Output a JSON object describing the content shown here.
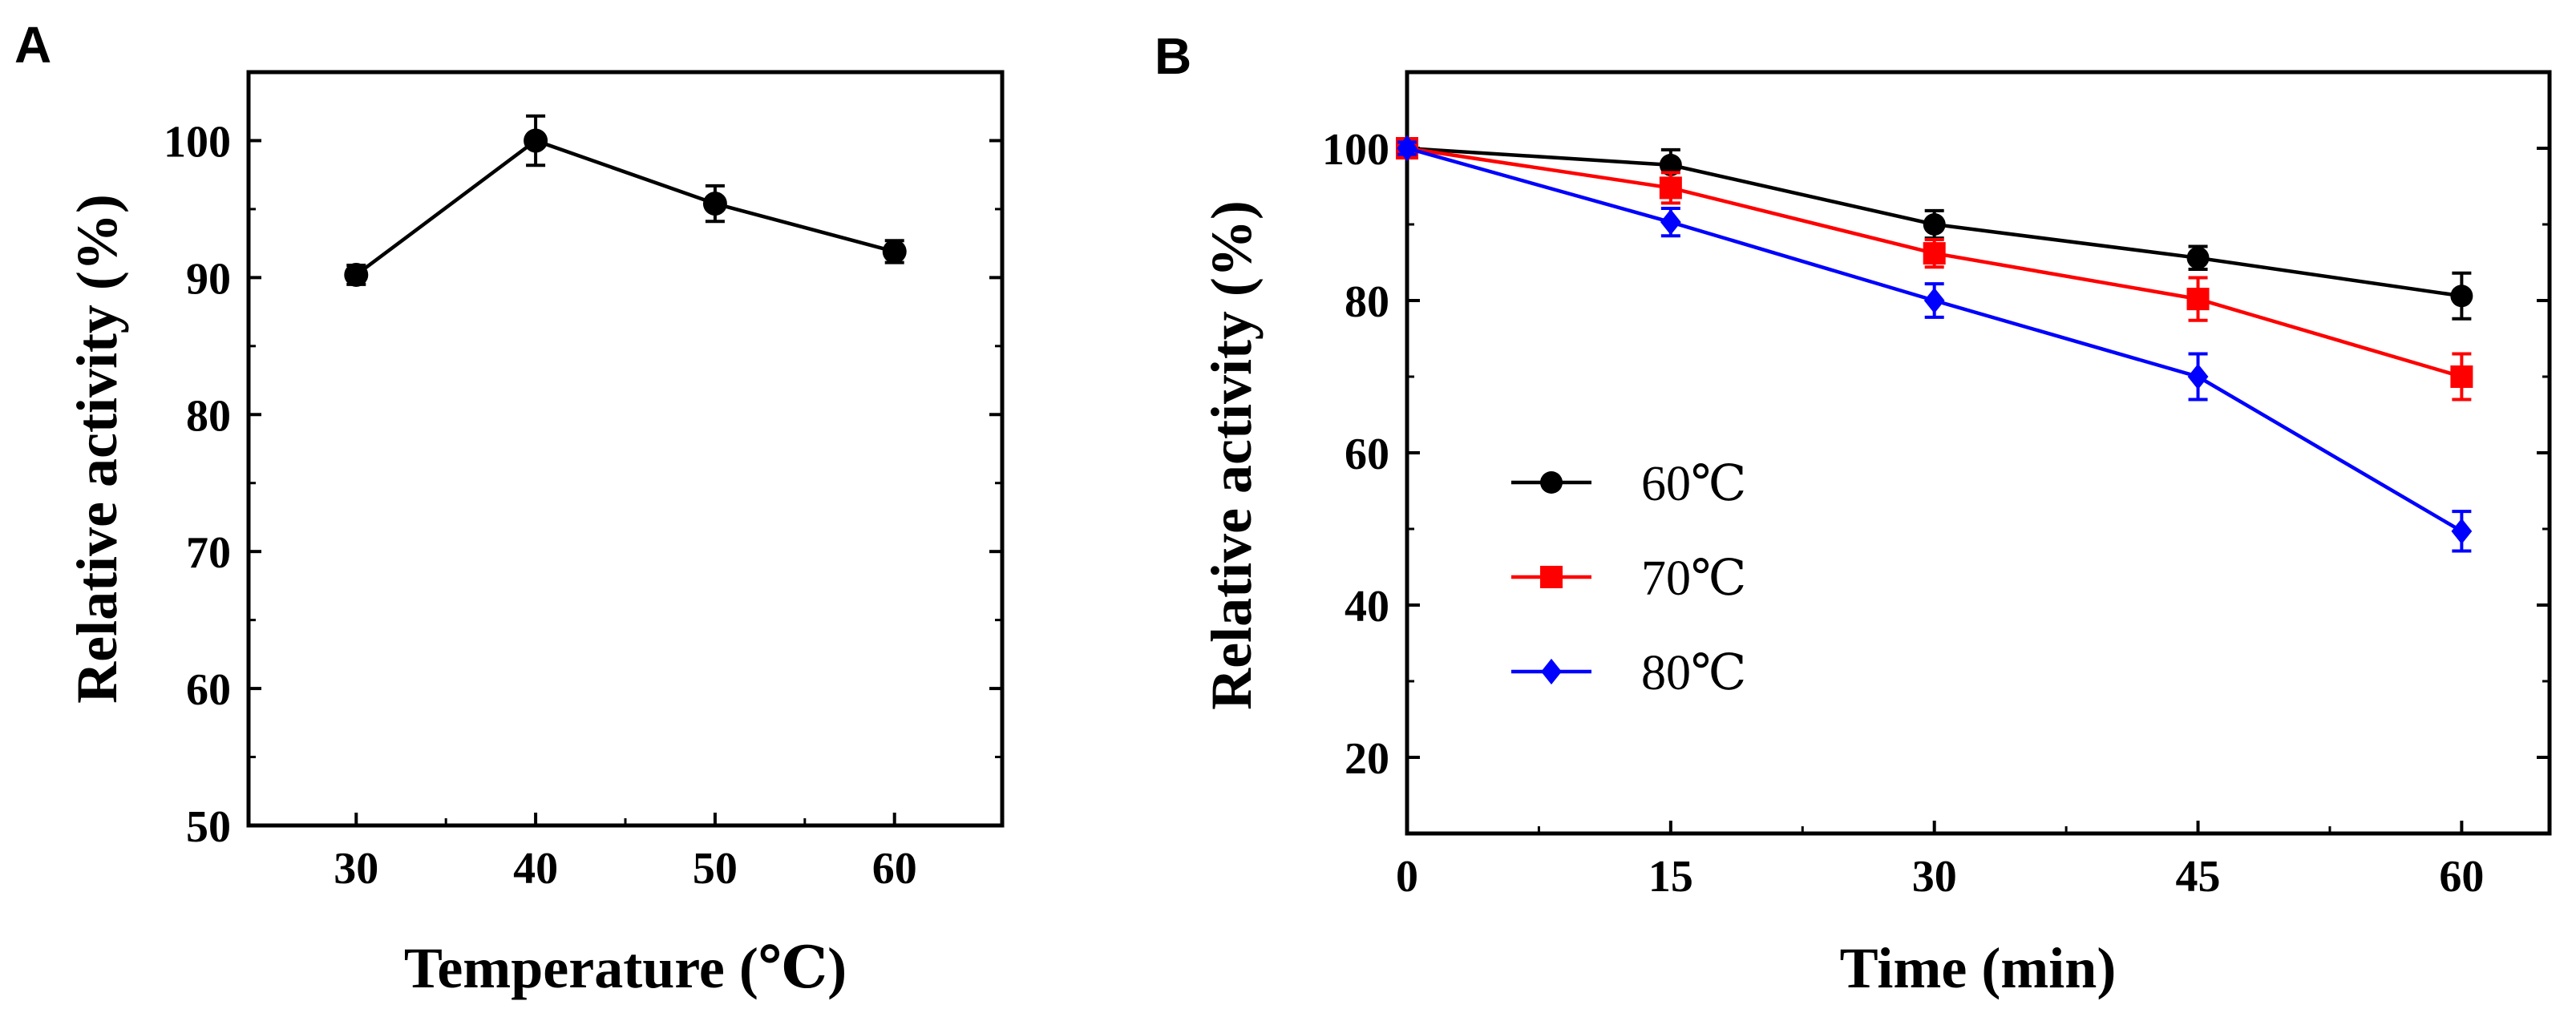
{
  "chart_data": [
    {
      "panel": "A",
      "type": "line",
      "xlabel": "Temperature (℃)",
      "ylabel": "Relative activity (%)",
      "xlim": [
        24,
        66
      ],
      "ylim": [
        50,
        105
      ],
      "xticks": [
        30,
        40,
        50,
        60
      ],
      "yticks": [
        50,
        60,
        70,
        80,
        90,
        100
      ],
      "grid": false,
      "series": [
        {
          "x": [
            30,
            40,
            50,
            60
          ],
          "values": [
            90.2,
            100.0,
            95.4,
            91.9
          ],
          "errors": [
            0.7,
            1.8,
            1.3,
            0.8
          ],
          "color": "#000000",
          "marker": "circle"
        }
      ]
    },
    {
      "panel": "B",
      "type": "line",
      "xlabel": "Time (min)",
      "ylabel": "Relative activity (%)",
      "xlim": [
        0,
        65
      ],
      "ylim": [
        10,
        110
      ],
      "xticks": [
        0,
        15,
        30,
        45,
        60
      ],
      "yticks": [
        20,
        40,
        60,
        80,
        100
      ],
      "grid": false,
      "legend_position": "center-left",
      "series": [
        {
          "name": "60℃",
          "x": [
            0,
            15,
            30,
            45,
            60
          ],
          "values": [
            100,
            97.8,
            90.0,
            85.6,
            80.6
          ],
          "errors": [
            0.8,
            2.0,
            1.8,
            1.5,
            3.0
          ],
          "color": "#000000",
          "marker": "circle"
        },
        {
          "name": "70℃",
          "x": [
            0,
            15,
            30,
            45,
            60
          ],
          "values": [
            100,
            94.8,
            86.2,
            80.2,
            70.0
          ],
          "errors": [
            0.8,
            2.0,
            1.8,
            2.8,
            3.0
          ],
          "color": "#ff0000",
          "marker": "square"
        },
        {
          "name": "80℃",
          "x": [
            0,
            15,
            30,
            45,
            60
          ],
          "values": [
            100,
            90.3,
            80.0,
            70.0,
            49.7
          ],
          "errors": [
            0.8,
            1.8,
            2.2,
            3.0,
            2.6
          ],
          "color": "#0000ff",
          "marker": "diamond"
        }
      ]
    }
  ]
}
